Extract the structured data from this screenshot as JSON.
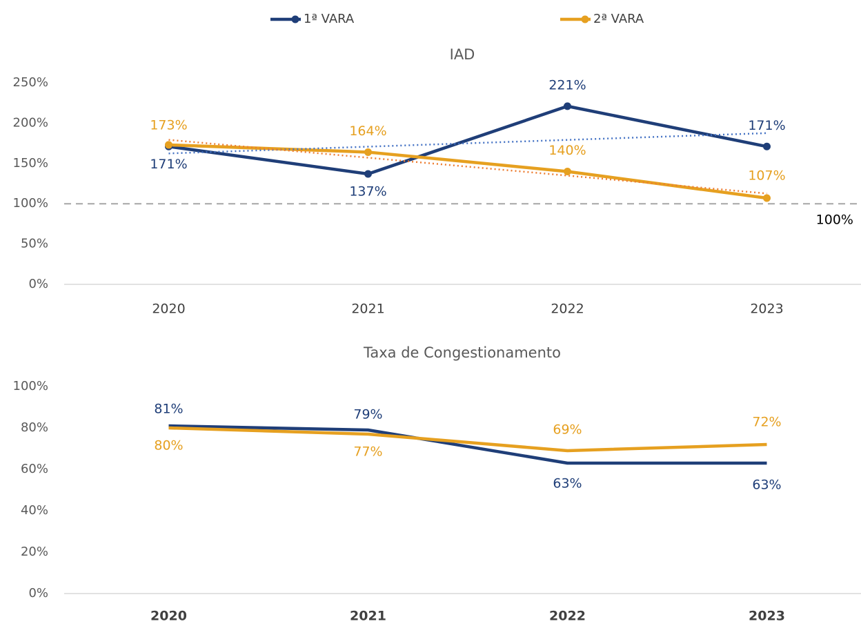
{
  "chart_data": [
    {
      "type": "line",
      "title": "IAD",
      "categories": [
        "2020",
        "2021",
        "2022",
        "2023"
      ],
      "series": [
        {
          "name": "1ª VARA",
          "color": "#1f3e78",
          "values": [
            171,
            137,
            221,
            171
          ],
          "value_labels": [
            "171%",
            "137%",
            "221%",
            "171%"
          ],
          "trendline_color": "#4472c4"
        },
        {
          "name": "2ª VARA",
          "color": "#e6a020",
          "values": [
            173,
            164,
            140,
            107
          ],
          "value_labels": [
            "173%",
            "164%",
            "140%",
            "107%"
          ],
          "trendline_color": "#ed7d31"
        }
      ],
      "ylim": [
        0,
        250
      ],
      "yticks": [
        {
          "value": 0,
          "label": "0%"
        },
        {
          "value": 50,
          "label": "50%"
        },
        {
          "value": 100,
          "label": "100%"
        },
        {
          "value": 150,
          "label": "150%"
        },
        {
          "value": 200,
          "label": "200%"
        },
        {
          "value": 250,
          "label": "250%"
        }
      ],
      "reference_line": {
        "value": 100,
        "label": "100%"
      },
      "markers": true,
      "trendline": true,
      "legend": "top",
      "grid": false
    },
    {
      "type": "line",
      "title": "Taxa de Congestionamento",
      "categories": [
        "2020",
        "2021",
        "2022",
        "2023"
      ],
      "series": [
        {
          "color": "#1f3e78",
          "values": [
            81,
            79,
            63,
            63
          ],
          "value_labels": [
            "81%",
            "79%",
            "63%",
            "63%"
          ]
        },
        {
          "color": "#e6a020",
          "values": [
            80,
            77,
            69,
            72
          ],
          "value_labels": [
            "80%",
            "77%",
            "69%",
            "72%"
          ]
        }
      ],
      "ylim": [
        0,
        100
      ],
      "yticks": [
        {
          "value": 0,
          "label": "0%"
        },
        {
          "value": 20,
          "label": "20%"
        },
        {
          "value": 40,
          "label": "40%"
        },
        {
          "value": 60,
          "label": "60%"
        },
        {
          "value": 80,
          "label": "80%"
        },
        {
          "value": 100,
          "label": "100%"
        }
      ],
      "markers": false,
      "trendline": false,
      "grid": false
    }
  ]
}
